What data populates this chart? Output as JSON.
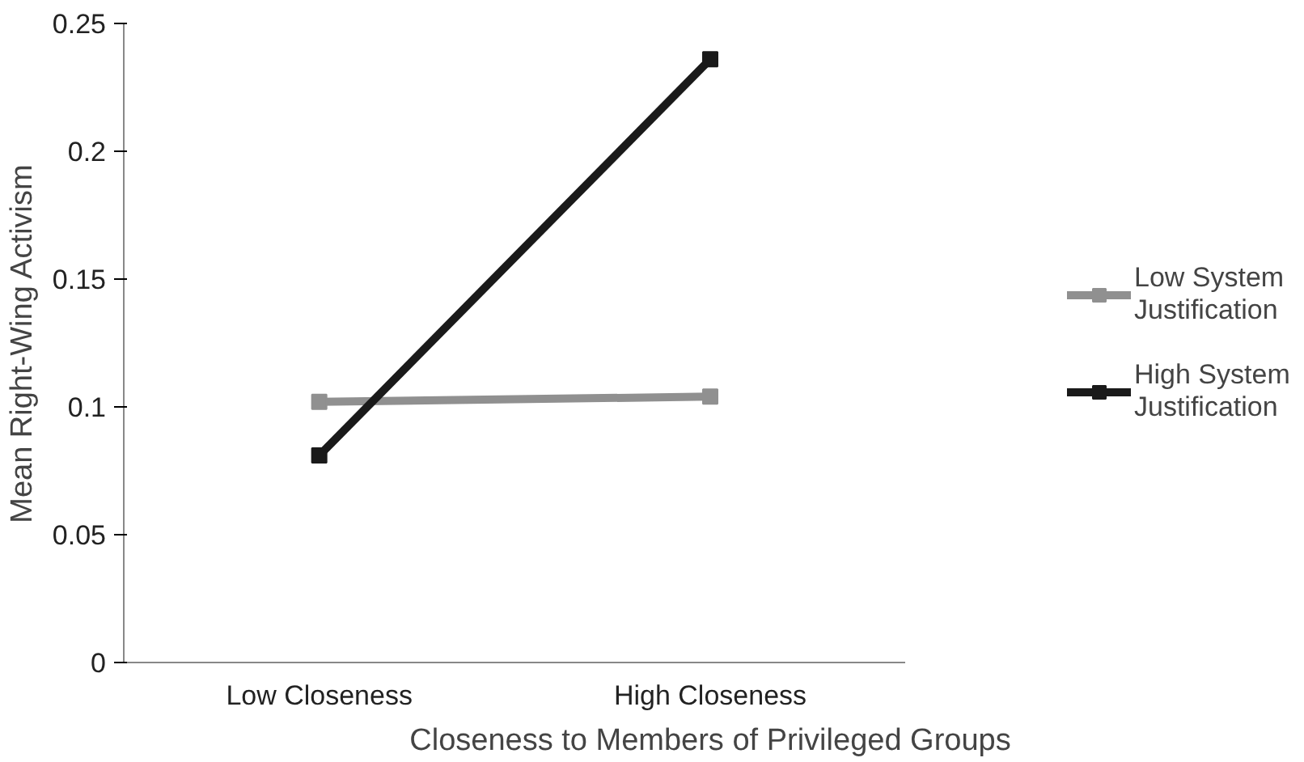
{
  "chart_data": {
    "type": "line",
    "xlabel": "Closeness to Members of Privileged Groups",
    "ylabel": "Mean Right-Wing Activism",
    "categories": [
      "Low Closeness",
      "High Closeness"
    ],
    "series": [
      {
        "name": "Low System Justification",
        "color": "#909090",
        "values": [
          0.102,
          0.104
        ]
      },
      {
        "name": "High System Justification",
        "color": "#1a1a1a",
        "values": [
          0.081,
          0.236
        ]
      }
    ],
    "ylim": [
      0,
      0.25
    ],
    "yticks": [
      {
        "value": 0,
        "label": "0"
      },
      0.05,
      0.1,
      0.15,
      0.2,
      0.25
    ],
    "grid": false,
    "legend": "right",
    "marker": "square",
    "line_style": "solid"
  }
}
